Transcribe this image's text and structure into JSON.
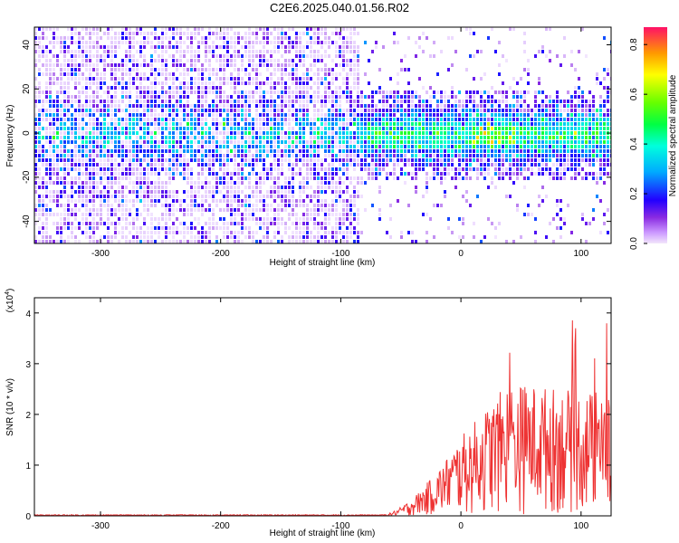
{
  "title": "C2E6.2025.040.01.56.R02",
  "chart_data": [
    {
      "type": "heatmap",
      "xlabel": "Height of straight line (km)",
      "ylabel": "Frequency (Hz)",
      "xlim": [
        -355,
        125
      ],
      "ylim": [
        -50,
        48
      ],
      "xticks": [
        -300,
        -200,
        -100,
        0,
        100
      ],
      "yticks": [
        -40,
        -20,
        0,
        20,
        40
      ],
      "colorbar": {
        "label": "Normalized spectral amplitude",
        "range": [
          0,
          0.87
        ],
        "ticks": [
          0.0,
          0.2,
          0.4,
          0.6,
          0.8
        ]
      },
      "grid": false
    },
    {
      "type": "line",
      "xlabel": "Height of straight line (km)",
      "ylabel": "SNR (10 * v/v)",
      "y_scale_note": "(x10",
      "y_scale_exp": "4",
      "y_scale_close": ")",
      "xlim": [
        -355,
        125
      ],
      "ylim": [
        0,
        4.3
      ],
      "xticks": [
        -300,
        -200,
        -100,
        0,
        100
      ],
      "yticks": [
        0,
        1,
        2,
        3,
        4
      ],
      "series": [
        {
          "color": "#ee3333"
        }
      ],
      "grid": false
    }
  ]
}
